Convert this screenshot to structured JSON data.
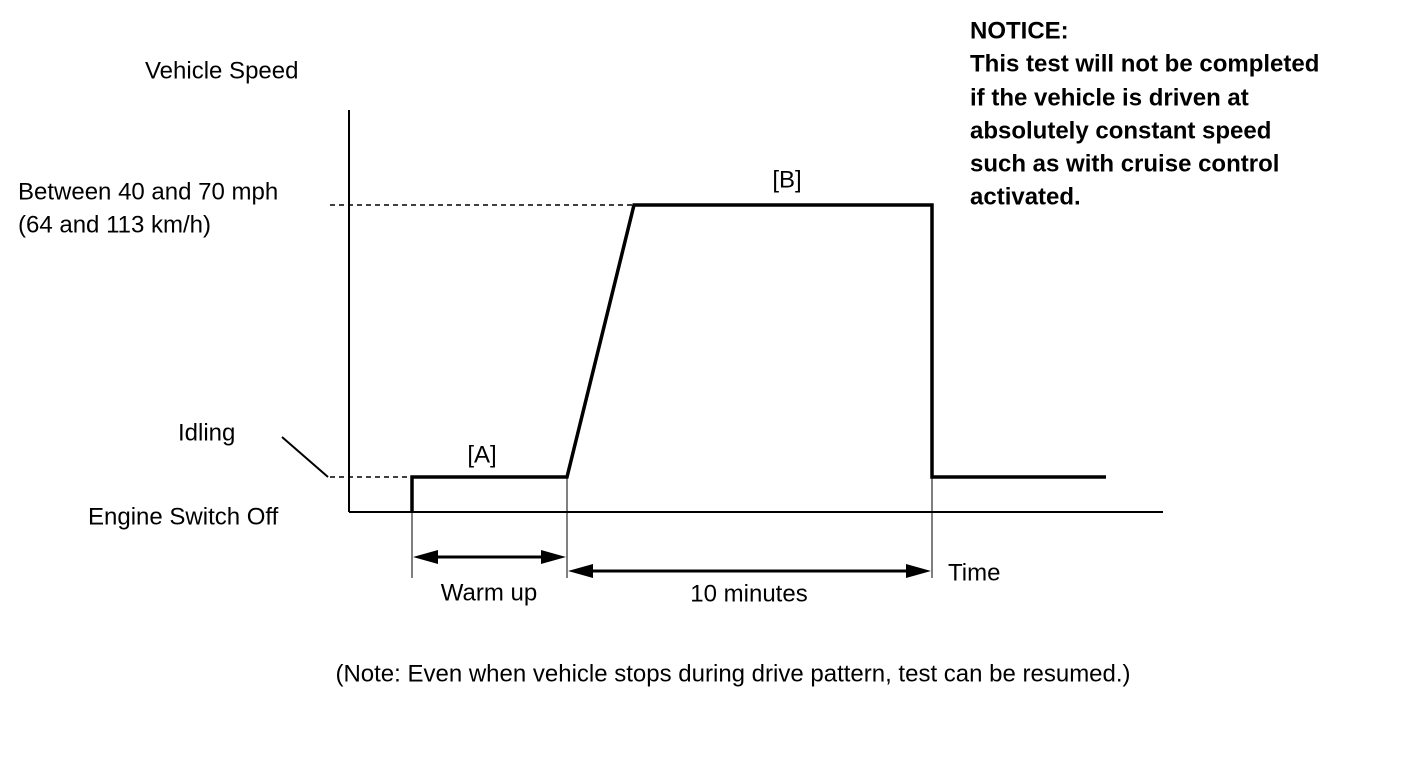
{
  "y_axis_label": "Vehicle Speed",
  "speed_label": [
    "Between 40 and 70 mph",
    "(64 and 113 km/h)"
  ],
  "idling_label": "Idling",
  "engine_off_label": "Engine Switch Off",
  "phase_a": "[A]",
  "phase_b": "[B]",
  "warm_up_label": "Warm up",
  "duration_label": "10 minutes",
  "x_axis_label": "Time",
  "notice": {
    "title": "NOTICE:",
    "lines": [
      "This test will not be completed",
      "if the vehicle is driven at",
      "absolutely constant speed",
      "such as with cruise control",
      "activated."
    ]
  },
  "note": "(Note: Even when vehicle stops during drive pattern, test can be resumed.)"
}
